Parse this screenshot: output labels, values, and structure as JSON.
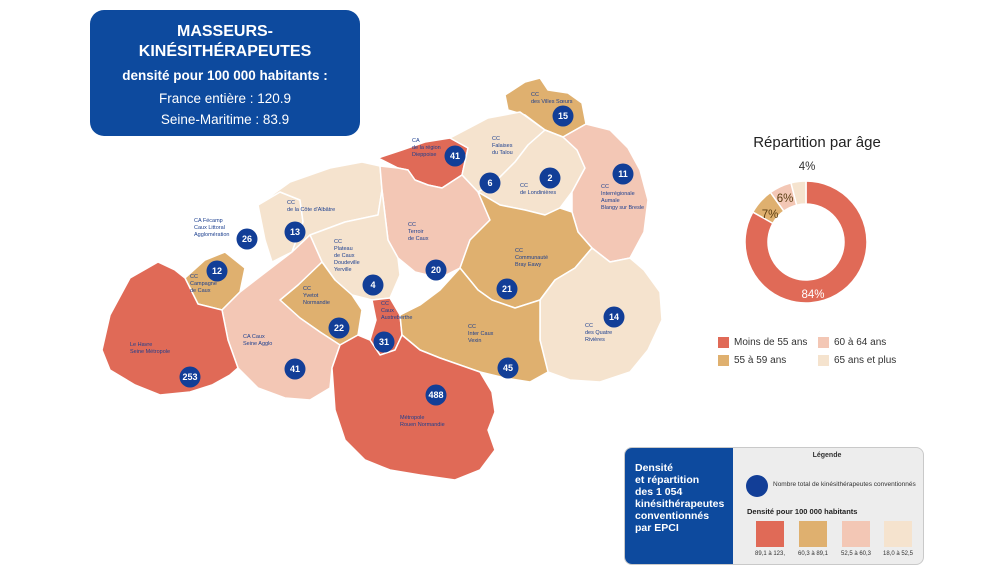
{
  "title_box": {
    "line1": "MASSEURS-",
    "line2": "KINÉSITHÉRAPEUTES",
    "line3": "densité pour 100 000 habitants :",
    "france": "France entière : 120.9",
    "seine": "Seine-Maritime : 83.9"
  },
  "colors": {
    "dark": "#e06a57",
    "mid": "#dfb06f",
    "light": "#f3c7b5",
    "pale": "#f5e3ce",
    "marker": "#123e97",
    "blue_box": "#0d4a9e"
  },
  "epci": [
    {
      "name": "CC des Villes Sœurs",
      "lines": [
        "CC",
        "des Villes Sœurs"
      ],
      "count": "15",
      "density_class": "mid"
    },
    {
      "name": "CA de la région Dieppoise",
      "lines": [
        "CA",
        "de la région",
        "Dieppoise"
      ],
      "count": "41",
      "density_class": "dark"
    },
    {
      "name": "CC Falaises du Talou",
      "lines": [
        "CC",
        "Falaises",
        "du Talou"
      ],
      "count": "6",
      "density_class": "pale"
    },
    {
      "name": "CC de Londinières",
      "lines": [
        "CC",
        "de Londinières"
      ],
      "count": "2",
      "density_class": "pale"
    },
    {
      "name": "CC Interrégionale Aumale Blangy sur Bresle",
      "lines": [
        "CC",
        "Interrégionale",
        "Aumale",
        "Blangy sur Bresle"
      ],
      "count": "11",
      "density_class": "light"
    },
    {
      "name": "CA Fécamp Caux Littoral Agglomération",
      "lines": [
        "CA Fécamp",
        "Caux Littoral",
        "Agglomération"
      ],
      "count": "26",
      "density_class": "pale"
    },
    {
      "name": "CC de la Côte d'Albâtre",
      "lines": [
        "CC",
        "de la Côte d'Albâtre"
      ],
      "count": "13",
      "density_class": "pale"
    },
    {
      "name": "CC Terroir de Caux",
      "lines": [
        "CC",
        "Terroir",
        "de Caux"
      ],
      "count": "20",
      "density_class": "light"
    },
    {
      "name": "CC Plateau de Caux Doudeville Yerville",
      "lines": [
        "CC",
        "Plateau",
        "de Caux",
        "Doudeville",
        "Yerville"
      ],
      "count": "4",
      "density_class": "pale"
    },
    {
      "name": "CC Communauté Bray Eawy",
      "lines": [
        "CC",
        "Communauté",
        "Bray Eawy"
      ],
      "count": "21",
      "density_class": "mid"
    },
    {
      "name": "CC Campagne de Caux",
      "lines": [
        "CC",
        "Campagne",
        "de Caux"
      ],
      "count": "12",
      "density_class": "mid"
    },
    {
      "name": "CC Yvetot Normandie",
      "lines": [
        "CC",
        "Yvetot",
        "Normandie"
      ],
      "count": "22",
      "density_class": "mid"
    },
    {
      "name": "CC Caux Austreberthe",
      "lines": [
        "CC",
        "Caux",
        "Austreberthe"
      ],
      "count": "31",
      "density_class": "dark"
    },
    {
      "name": "CC des Quatre Rivières",
      "lines": [
        "CC",
        "des Quatre",
        "Rivières"
      ],
      "count": "14",
      "density_class": "pale"
    },
    {
      "name": "CC Inter Caux Vexin",
      "lines": [
        "CC",
        "Inter Caux",
        "Vexin"
      ],
      "count": "45",
      "density_class": "mid"
    },
    {
      "name": "CA Caux Seine Agglo",
      "lines": [
        "CA Caux",
        "Seine Agglo"
      ],
      "count": "41",
      "density_class": "light"
    },
    {
      "name": "Le Havre Seine Métropole",
      "lines": [
        "Le Havre",
        "Seine Métropole"
      ],
      "count": "253",
      "density_class": "dark"
    },
    {
      "name": "Métropole Rouen Normandie",
      "lines": [
        "Métropole",
        "Rouen Normandie"
      ],
      "count": "488",
      "density_class": "dark"
    }
  ],
  "age": {
    "title": "Répartition par âge",
    "slices": [
      {
        "label": "Moins de 55 ans",
        "percent": 84,
        "text": "84%",
        "color": "#e06a57"
      },
      {
        "label": "55 à 59 ans",
        "percent": 7,
        "text": "7%",
        "color": "#dfb06f"
      },
      {
        "label": "60 à 64 ans",
        "percent": 6,
        "text": "6%",
        "color": "#f3c7b5"
      },
      {
        "label": "65 ans et plus",
        "percent": 4,
        "text": "4%",
        "color": "#f5e3ce"
      }
    ]
  },
  "legend": {
    "side_text": [
      "Densité",
      "et répartition",
      "des 1 054",
      "kinésithérapeutes",
      "conventionnés",
      "par EPCI"
    ],
    "header": "Légende",
    "dot_label": "Nombre total de  kinésithérapeutes conventionnés",
    "density_title": "Densité pour 100 000 habitants",
    "classes": [
      {
        "range": "89,1 à 123,",
        "color": "#e06a57"
      },
      {
        "range": "60,3 à 89,1",
        "color": "#dfb06f"
      },
      {
        "range": "52,5 à 60,3",
        "color": "#f3c7b5"
      },
      {
        "range": "18,0 à 52,5",
        "color": "#f5e3ce"
      }
    ]
  }
}
